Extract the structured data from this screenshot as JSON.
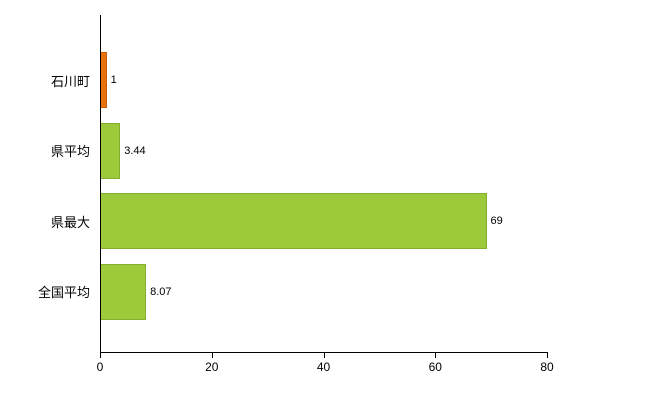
{
  "chart_data": {
    "type": "bar",
    "orientation": "horizontal",
    "title": "",
    "xlabel": "",
    "ylabel": "",
    "categories": [
      "石川町",
      "県平均",
      "県最大",
      "全国平均"
    ],
    "values": [
      1,
      3.44,
      69,
      8.07
    ],
    "value_labels": [
      "1",
      "3.44",
      "69",
      "8.07"
    ],
    "bar_colors": [
      "#e8720e",
      "#9dca3b",
      "#9dca3b",
      "#9dca3b"
    ],
    "bar_border_colors": [
      "#c45c08",
      "#85ad2e",
      "#85ad2e",
      "#85ad2e"
    ],
    "xlim": [
      0,
      80
    ],
    "xticks": [
      0,
      20,
      40,
      60,
      80
    ],
    "grid": false,
    "legend": null
  },
  "colors": {
    "axis": "#000000",
    "text": "#000000",
    "background": "#ffffff"
  }
}
